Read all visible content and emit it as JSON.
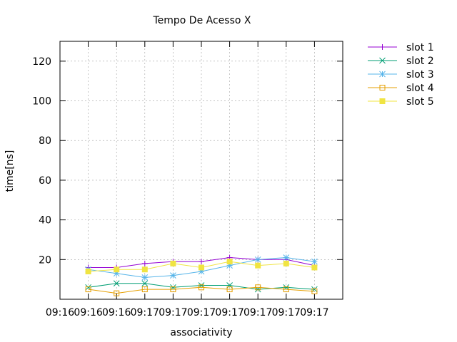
{
  "chart_data": {
    "type": "line",
    "title": "Tempo De Acesso X",
    "xlabel": "associativity",
    "ylabel": "time[ns]",
    "xlim": [
      0,
      10
    ],
    "ylim": [
      0,
      130
    ],
    "y_ticks": [
      20,
      40,
      60,
      80,
      100,
      120
    ],
    "x_ticks": [
      {
        "x": 0,
        "label": "09:16"
      },
      {
        "x": 1,
        "label": "09:16"
      },
      {
        "x": 2,
        "label": "09:16"
      },
      {
        "x": 3,
        "label": "09:17"
      },
      {
        "x": 4,
        "label": "09:17"
      },
      {
        "x": 5,
        "label": "09:17"
      },
      {
        "x": 6,
        "label": "09:17"
      },
      {
        "x": 7,
        "label": "09:17"
      },
      {
        "x": 8,
        "label": "09:17"
      },
      {
        "x": 9,
        "label": "09:17"
      }
    ],
    "grid": true,
    "legend_position": "outside-top-right",
    "x": [
      1,
      2,
      3,
      4,
      5,
      6,
      7,
      8,
      9
    ],
    "series": [
      {
        "name": "slot 1",
        "color": "#9400d3",
        "marker": "plus",
        "values": [
          16,
          16,
          18,
          19,
          19,
          21,
          20,
          20,
          17
        ]
      },
      {
        "name": "slot 2",
        "color": "#009e73",
        "marker": "cross",
        "values": [
          6,
          8,
          8,
          6,
          7,
          7,
          5,
          6,
          5
        ]
      },
      {
        "name": "slot 3",
        "color": "#56b4e9",
        "marker": "star",
        "values": [
          15,
          13,
          11,
          12,
          14,
          17,
          20,
          21,
          19
        ]
      },
      {
        "name": "slot 4",
        "color": "#e69f00",
        "marker": "open-square",
        "values": [
          5,
          3,
          5,
          5,
          6,
          5,
          6,
          5,
          4
        ]
      },
      {
        "name": "slot 5",
        "color": "#f0e442",
        "marker": "filled-square",
        "values": [
          14,
          15,
          15,
          18,
          16,
          19,
          17,
          18,
          16
        ]
      }
    ]
  }
}
